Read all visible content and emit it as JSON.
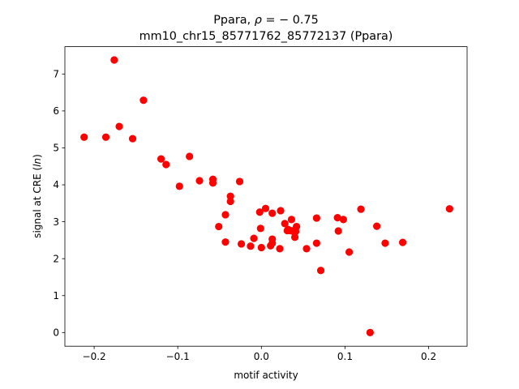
{
  "chart_data": {
    "type": "scatter",
    "title_line1_prefix": "Ppara, ",
    "title_line1_rho": "ρ",
    "title_line1_suffix": " = − 0.75",
    "title_line2": "mm10_chr15_85771762_85772137 (Ppara)",
    "xlabel": "motif activity",
    "ylabel_prefix": "signal at CRE (",
    "ylabel_italic": "ln",
    "ylabel_suffix": ")",
    "xlim": [
      -0.235,
      0.246
    ],
    "ylim": [
      -0.37,
      7.74
    ],
    "xticks": [
      -0.2,
      -0.1,
      0.0,
      0.1,
      0.2
    ],
    "xtick_labels": [
      "−0.2",
      "−0.1",
      "0.0",
      "0.1",
      "0.2"
    ],
    "yticks": [
      0,
      1,
      2,
      3,
      4,
      5,
      6,
      7
    ],
    "ytick_labels": [
      "0",
      "1",
      "2",
      "3",
      "4",
      "5",
      "6",
      "7"
    ],
    "marker_color": "#ff0000",
    "grid": false,
    "points": [
      {
        "x": -0.212,
        "y": 5.29
      },
      {
        "x": -0.186,
        "y": 5.29
      },
      {
        "x": -0.176,
        "y": 7.38
      },
      {
        "x": -0.17,
        "y": 5.58
      },
      {
        "x": -0.154,
        "y": 5.25
      },
      {
        "x": -0.141,
        "y": 6.29
      },
      {
        "x": -0.12,
        "y": 4.7
      },
      {
        "x": -0.114,
        "y": 4.55
      },
      {
        "x": -0.098,
        "y": 3.96
      },
      {
        "x": -0.086,
        "y": 4.77
      },
      {
        "x": -0.074,
        "y": 4.11
      },
      {
        "x": -0.058,
        "y": 4.15
      },
      {
        "x": -0.058,
        "y": 4.05
      },
      {
        "x": -0.051,
        "y": 2.87
      },
      {
        "x": -0.043,
        "y": 3.19
      },
      {
        "x": -0.043,
        "y": 2.45
      },
      {
        "x": -0.037,
        "y": 3.69
      },
      {
        "x": -0.037,
        "y": 3.55
      },
      {
        "x": -0.026,
        "y": 4.09
      },
      {
        "x": -0.024,
        "y": 2.4
      },
      {
        "x": -0.013,
        "y": 2.34
      },
      {
        "x": -0.009,
        "y": 2.55
      },
      {
        "x": -0.002,
        "y": 3.26
      },
      {
        "x": -0.001,
        "y": 2.82
      },
      {
        "x": 0.0,
        "y": 2.3
      },
      {
        "x": 0.005,
        "y": 3.36
      },
      {
        "x": 0.011,
        "y": 2.35
      },
      {
        "x": 0.013,
        "y": 3.23
      },
      {
        "x": 0.013,
        "y": 2.53
      },
      {
        "x": 0.013,
        "y": 2.42
      },
      {
        "x": 0.022,
        "y": 2.27
      },
      {
        "x": 0.023,
        "y": 3.3
      },
      {
        "x": 0.028,
        "y": 2.95
      },
      {
        "x": 0.031,
        "y": 2.76
      },
      {
        "x": 0.032,
        "y": 2.79
      },
      {
        "x": 0.035,
        "y": 2.76
      },
      {
        "x": 0.036,
        "y": 3.06
      },
      {
        "x": 0.037,
        "y": 2.75
      },
      {
        "x": 0.04,
        "y": 2.58
      },
      {
        "x": 0.041,
        "y": 2.74
      },
      {
        "x": 0.042,
        "y": 2.87
      },
      {
        "x": 0.054,
        "y": 2.27
      },
      {
        "x": 0.066,
        "y": 3.1
      },
      {
        "x": 0.066,
        "y": 2.42
      },
      {
        "x": 0.071,
        "y": 1.68
      },
      {
        "x": 0.091,
        "y": 3.11
      },
      {
        "x": 0.092,
        "y": 2.75
      },
      {
        "x": 0.098,
        "y": 3.06
      },
      {
        "x": 0.105,
        "y": 2.18
      },
      {
        "x": 0.119,
        "y": 3.34
      },
      {
        "x": 0.13,
        "y": 0.0
      },
      {
        "x": 0.138,
        "y": 2.88
      },
      {
        "x": 0.148,
        "y": 2.42
      },
      {
        "x": 0.169,
        "y": 2.44
      },
      {
        "x": 0.225,
        "y": 3.35
      }
    ]
  }
}
